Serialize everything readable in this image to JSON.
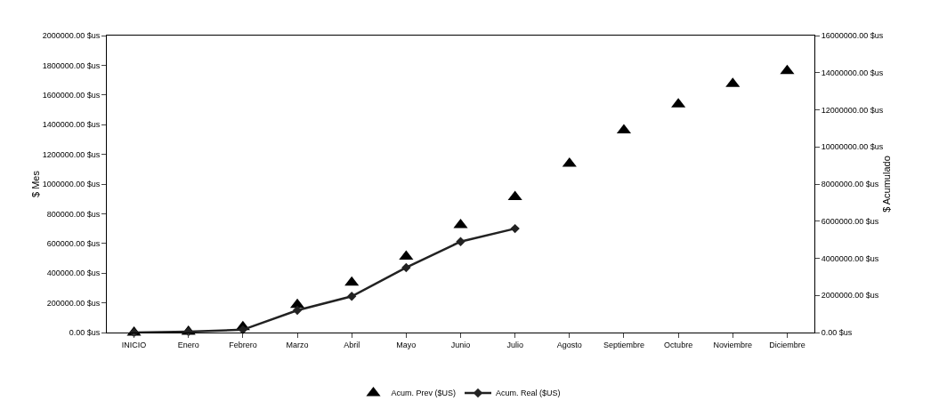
{
  "chart_data": {
    "type": "line",
    "categories": [
      "INICIO",
      "Enero",
      "Febrero",
      "Marzo",
      "Abril",
      "Mayo",
      "Junio",
      "Julio",
      "Agosto",
      "Septiembre",
      "Octubre",
      "Noviembre",
      "Diciembre"
    ],
    "ylabel": "$ Mes",
    "y2label": "$ Acumulado",
    "ylim": [
      0,
      2000000
    ],
    "yticks": [
      {
        "value": 0,
        "label": "0.00 $us"
      },
      {
        "value": 200000,
        "label": "200000.00 $us"
      },
      {
        "value": 400000,
        "label": "400000.00 $us"
      },
      {
        "value": 600000,
        "label": "600000.00 $us"
      },
      {
        "value": 800000,
        "label": "800000.00 $us"
      },
      {
        "value": 1000000,
        "label": "1000000.00 $us"
      },
      {
        "value": 1200000,
        "label": "1200000.00 $us"
      },
      {
        "value": 1400000,
        "label": "1400000.00 $us"
      },
      {
        "value": 1600000,
        "label": "1600000.00 $us"
      },
      {
        "value": 1800000,
        "label": "1800000.00 $us"
      },
      {
        "value": 2000000,
        "label": "2000000.00 $us"
      }
    ],
    "y2lim": [
      0,
      16000000
    ],
    "y2ticks": [
      {
        "value": 0,
        "label": "0.00 $us"
      },
      {
        "value": 2000000,
        "label": "2000000.00 $us"
      },
      {
        "value": 4000000,
        "label": "4000000.00 $us"
      },
      {
        "value": 6000000,
        "label": "6000000.00 $us"
      },
      {
        "value": 8000000,
        "label": "8000000.00 $us"
      },
      {
        "value": 10000000,
        "label": "10000000.00 $us"
      },
      {
        "value": 12000000,
        "label": "12000000.00 $us"
      },
      {
        "value": 14000000,
        "label": "14000000.00 $us"
      },
      {
        "value": 16000000,
        "label": "16000000.00 $us"
      }
    ],
    "series": [
      {
        "name": "Acum. Prev ($US)",
        "color": "#000000",
        "type": "scatter",
        "marker": "triangle",
        "axis": "y2",
        "values": [
          0,
          50000,
          300000,
          1500000,
          2700000,
          4100000,
          5800000,
          7300000,
          9100000,
          10900000,
          12300000,
          13400000,
          14100000
        ]
      },
      {
        "name": "Acum. Real ($US)",
        "color": "#222222",
        "type": "line",
        "marker": "diamond",
        "line_style": "solid",
        "axis": "y2",
        "values": [
          0,
          50000,
          150000,
          1200000,
          1950000,
          3500000,
          4900000,
          5600000,
          null,
          null,
          null,
          null,
          null
        ]
      }
    ],
    "grid": false,
    "legend": "bottom"
  }
}
